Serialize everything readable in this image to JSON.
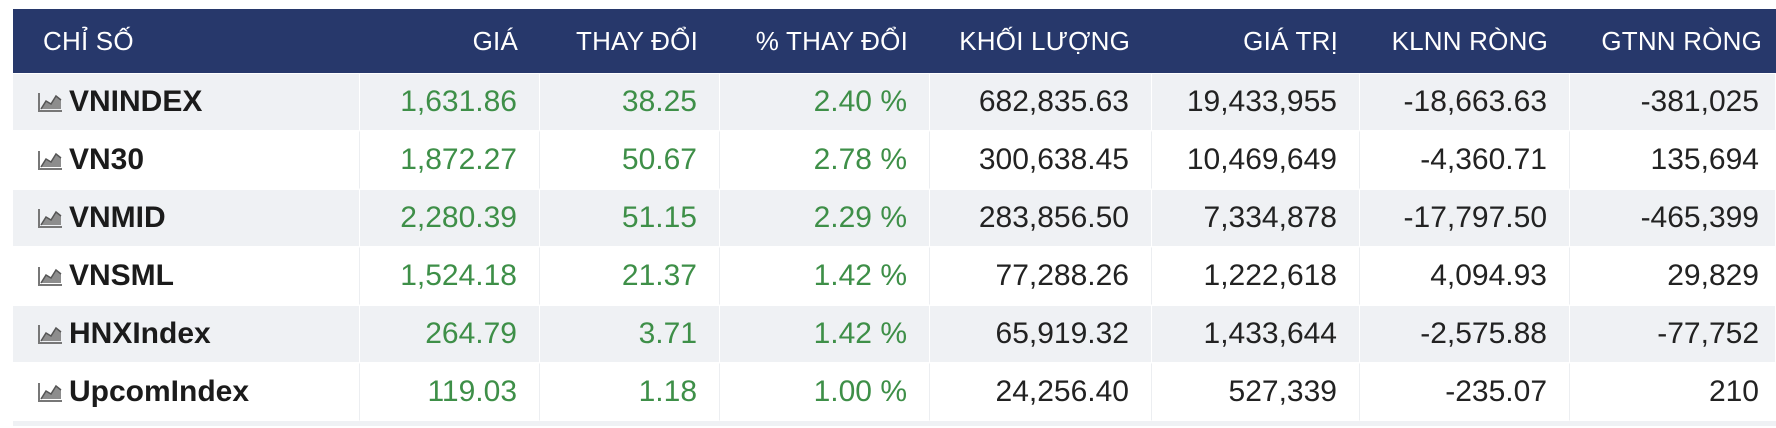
{
  "table": {
    "headers": [
      "CHỈ SỐ",
      "GIÁ",
      "THAY ĐỔI",
      "% THAY ĐỔI",
      "KHỐI LƯỢNG",
      "GIÁ TRỊ",
      "KLNN RÒNG",
      "GTNN RÒNG"
    ],
    "rows": [
      {
        "name": "VNINDEX",
        "price": "1,631.86",
        "change": "38.25",
        "pct": "2.40 %",
        "volume": "682,835.63",
        "value": "19,433,955",
        "klnn": "-18,663.63",
        "gtnn": "-381,025"
      },
      {
        "name": "VN30",
        "price": "1,872.27",
        "change": "50.67",
        "pct": "2.78 %",
        "volume": "300,638.45",
        "value": "10,469,649",
        "klnn": "-4,360.71",
        "gtnn": "135,694"
      },
      {
        "name": "VNMID",
        "price": "2,280.39",
        "change": "51.15",
        "pct": "2.29 %",
        "volume": "283,856.50",
        "value": "7,334,878",
        "klnn": "-17,797.50",
        "gtnn": "-465,399"
      },
      {
        "name": "VNSML",
        "price": "1,524.18",
        "change": "21.37",
        "pct": "1.42 %",
        "volume": "77,288.26",
        "value": "1,222,618",
        "klnn": "4,094.93",
        "gtnn": "29,829"
      },
      {
        "name": "HNXIndex",
        "price": "264.79",
        "change": "3.71",
        "pct": "1.42 %",
        "volume": "65,919.32",
        "value": "1,433,644",
        "klnn": "-2,575.88",
        "gtnn": "-77,752"
      },
      {
        "name": "UpcomIndex",
        "price": "119.03",
        "change": "1.18",
        "pct": "1.00 %",
        "volume": "24,256.40",
        "value": "527,339",
        "klnn": "-235.07",
        "gtnn": "210"
      }
    ]
  },
  "colors": {
    "header_bg": "#27386b",
    "up": "#3e8f48",
    "stripe": "#eff1f4"
  },
  "icons": {
    "row_icon": "area-chart-icon"
  }
}
